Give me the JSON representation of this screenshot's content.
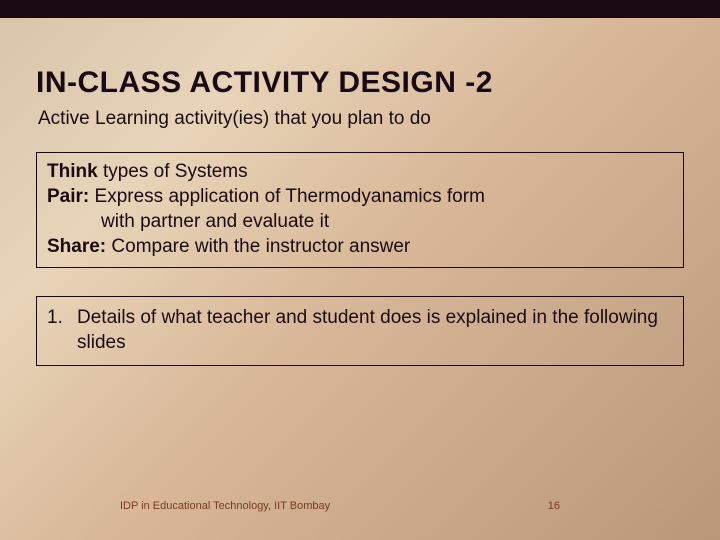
{
  "slide": {
    "title": "IN-CLASS ACTIVITY DESIGN -2",
    "subtitle": "Active Learning activity(ies) that you plan to do",
    "box1": {
      "think_label": "Think",
      "think_text": " types of Systems",
      "pair_label": "Pair:",
      "pair_text": " Express application of Thermodyanamics form",
      "pair_cont": "with partner and evaluate it",
      "share_label": "Share:",
      "share_text": " Compare with the instructor answer"
    },
    "box2": {
      "num": "1.",
      "text": "Details of what teacher and student does is explained in the following slides"
    },
    "footer": {
      "credit": "IDP in Educational Technology, IIT Bombay",
      "page": "16"
    }
  },
  "colors": {
    "dark": "#1a0812",
    "footer": "#7a3a20",
    "bg_start": "#d8c4a8",
    "bg_end": "#b89878"
  }
}
